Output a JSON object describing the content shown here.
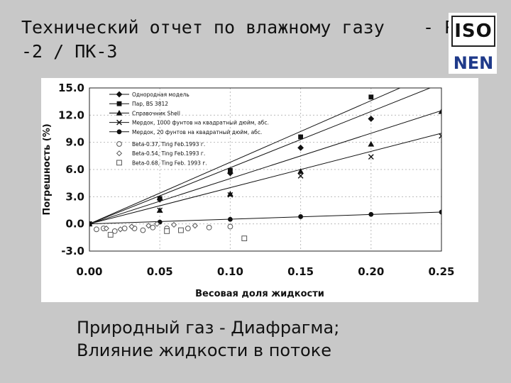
{
  "slide": {
    "title": "Технический отчет по влажному газу\n-2 / ПК-3",
    "title_tail": "- РГ",
    "logo_iso": "ISO",
    "logo_nen": "NEN",
    "subtitle": "Природный газ - Диафрагма;\nВлияние жидкости в потоке"
  },
  "chart_data": {
    "type": "line",
    "xlabel": "Весовая доля жидкости",
    "ylabel": "Погрешность (%)",
    "xlim": [
      0,
      0.25
    ],
    "ylim": [
      -3,
      15
    ],
    "x_ticks": [
      "0.00",
      "0.05",
      "0.10",
      "0.15",
      "0.20",
      "0.25"
    ],
    "y_ticks": [
      "15.0",
      "12.0",
      "9.0",
      "6.0",
      "3.0",
      "0.0",
      "-3.0"
    ],
    "grid": true,
    "legend_position": "top-left",
    "series": [
      {
        "name": "Однородная модель",
        "marker": "diamond",
        "line": [
          [
            0,
            0
          ],
          [
            0.25,
            15.5
          ]
        ],
        "points": [
          [
            0,
            0
          ],
          [
            0.05,
            2.7
          ],
          [
            0.1,
            5.6
          ],
          [
            0.15,
            8.4
          ],
          [
            0.2,
            11.6
          ]
        ]
      },
      {
        "name": "Пар, BS 3812",
        "marker": "square",
        "line": [
          [
            0,
            0
          ],
          [
            0.25,
            17
          ]
        ],
        "points": [
          [
            0,
            0
          ],
          [
            0.05,
            2.8
          ],
          [
            0.1,
            5.9
          ],
          [
            0.15,
            9.6
          ],
          [
            0.2,
            14.0
          ]
        ]
      },
      {
        "name": "Справочник Shell",
        "marker": "triangle",
        "line": [
          [
            0,
            0
          ],
          [
            0.25,
            12.5
          ]
        ],
        "points": [
          [
            0,
            0
          ],
          [
            0.05,
            1.5
          ],
          [
            0.1,
            3.3
          ],
          [
            0.15,
            5.8
          ],
          [
            0.2,
            8.8
          ],
          [
            0.25,
            12.4
          ]
        ]
      },
      {
        "name": "Мердок, 1000 фунтов на квадратный дюйм, абс.",
        "marker": "x",
        "line": [
          [
            0,
            0
          ],
          [
            0.25,
            10
          ]
        ],
        "points": [
          [
            0,
            0
          ],
          [
            0.05,
            1.5
          ],
          [
            0.1,
            3.2
          ],
          [
            0.15,
            5.3
          ],
          [
            0.2,
            7.4
          ],
          [
            0.25,
            9.7
          ]
        ]
      },
      {
        "name": "Мердок, 20 фунтов на квадратный дюйм, абс.",
        "marker": "dot",
        "line": [
          [
            0,
            0
          ],
          [
            0.25,
            1.3
          ]
        ],
        "points": [
          [
            0,
            0
          ],
          [
            0.05,
            0.2
          ],
          [
            0.1,
            0.5
          ],
          [
            0.15,
            0.8
          ],
          [
            0.2,
            1.05
          ],
          [
            0.25,
            1.3
          ]
        ]
      },
      {
        "name": "Beta-0.37, Ting Feb.1993 г.",
        "marker": "circle-open",
        "points": [
          [
            0.005,
            -0.6
          ],
          [
            0.01,
            -0.5
          ],
          [
            0.018,
            -0.8
          ],
          [
            0.025,
            -0.5
          ],
          [
            0.032,
            -0.5
          ],
          [
            0.038,
            -0.7
          ],
          [
            0.045,
            -0.4
          ],
          [
            0.055,
            -0.5
          ],
          [
            0.07,
            -0.5
          ],
          [
            0.085,
            -0.4
          ],
          [
            0.1,
            -0.3
          ]
        ]
      },
      {
        "name": "Beta-0.54, Ting Feb.1993 г.",
        "marker": "diamond-open",
        "points": [
          [
            0.012,
            -0.5
          ],
          [
            0.022,
            -0.6
          ],
          [
            0.03,
            -0.3
          ],
          [
            0.042,
            -0.2
          ],
          [
            0.048,
            0.0
          ],
          [
            0.06,
            -0.1
          ],
          [
            0.075,
            -0.2
          ]
        ]
      },
      {
        "name": "Beta-0.68, Ting Feb. 1993 г.",
        "marker": "square-open",
        "points": [
          [
            0.015,
            -1.2
          ],
          [
            0.055,
            -0.8
          ],
          [
            0.065,
            -0.7
          ],
          [
            0.11,
            -1.6
          ]
        ]
      }
    ]
  }
}
